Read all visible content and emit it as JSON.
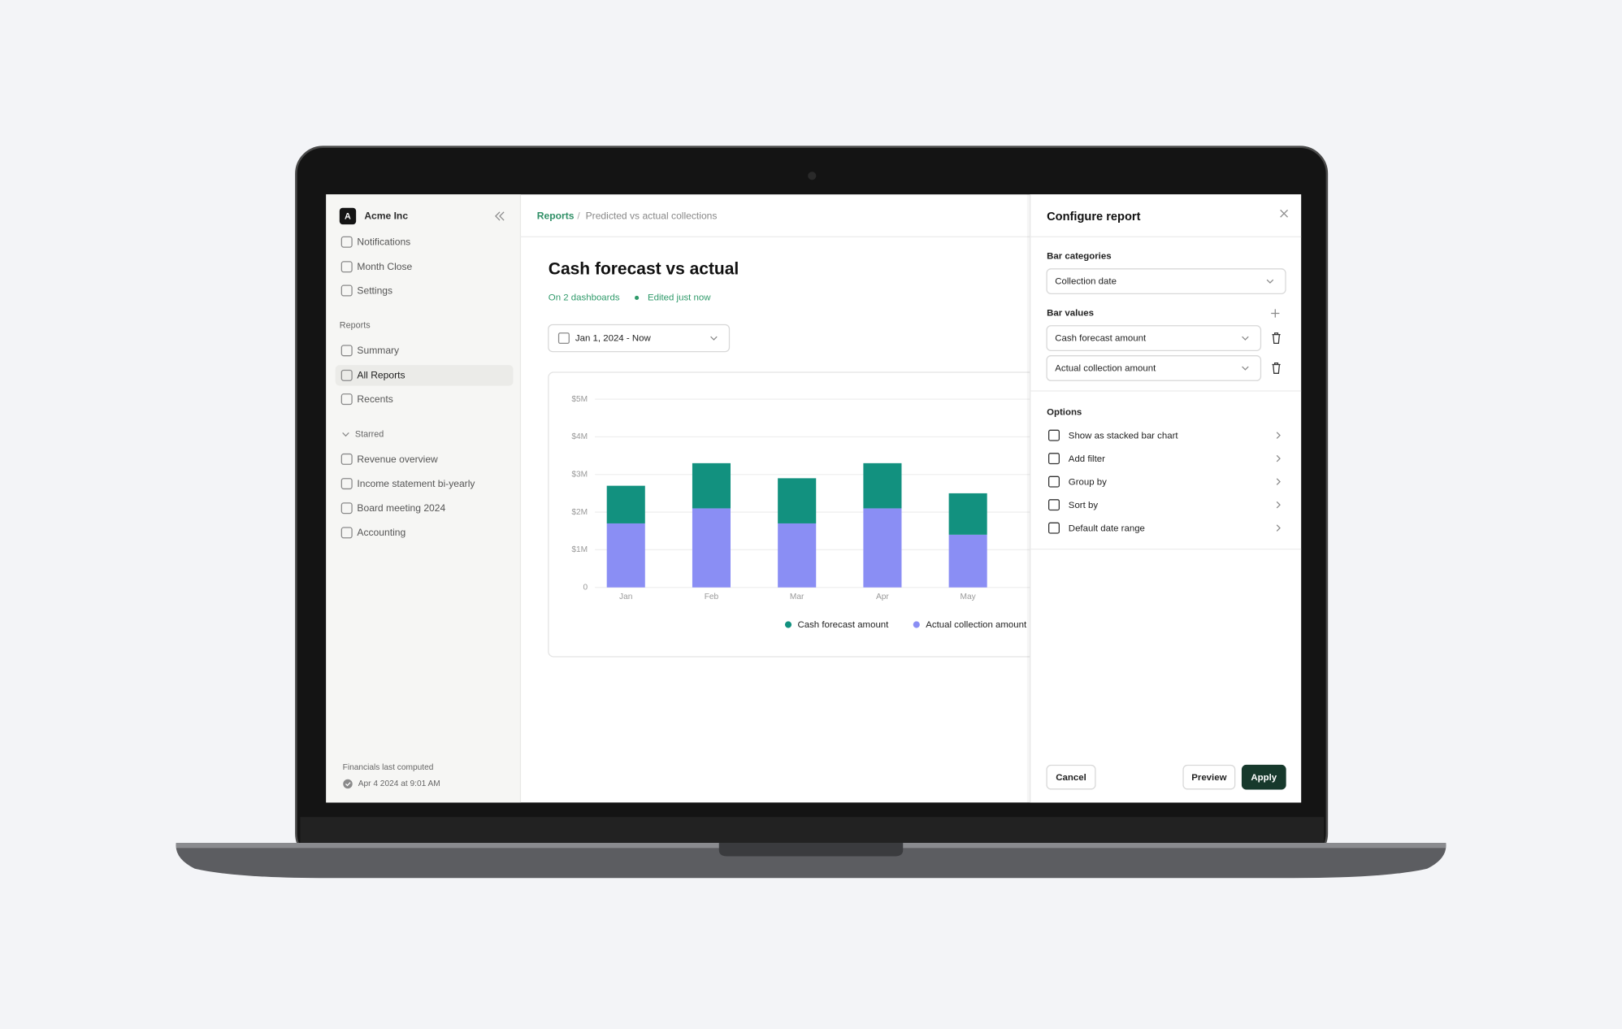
{
  "sidebar": {
    "logo": "A",
    "org": "Acme Inc",
    "nav": [
      "Notifications",
      "Month Close",
      "Settings"
    ],
    "reports_heading": "Reports",
    "reports": [
      "Summary",
      "All Reports",
      "Recents"
    ],
    "starred_heading": "Starred",
    "starred": [
      "Revenue overview",
      "Income statement bi-yearly",
      "Board meeting 2024",
      "Accounting"
    ],
    "footer_label": "Financials last computed",
    "footer_time": "Apr 4 2024 at 9:01 AM"
  },
  "breadcrumb": {
    "root": "Reports",
    "separator": "/",
    "current": "Predicted vs actual collections"
  },
  "report": {
    "title": "Cash forecast vs actual",
    "dashboards": "On 2 dashboards",
    "edited": "Edited just now",
    "date_range": "Jan 1, 2024 - Now"
  },
  "chart_data": {
    "type": "bar",
    "stacked": true,
    "categories": [
      "Jan",
      "Feb",
      "Mar",
      "Apr",
      "May"
    ],
    "series": [
      {
        "name": "Cash forecast amount",
        "color": "#12917f",
        "values": [
          1.0,
          1.2,
          1.2,
          1.2,
          1.1
        ]
      },
      {
        "name": "Actual collection amount",
        "color": "#8a8ef4",
        "values": [
          1.7,
          2.1,
          1.7,
          2.1,
          1.4
        ]
      }
    ],
    "ylim": [
      0,
      5
    ],
    "yticks": [
      0,
      {
        "value": 1,
        "label": "$1M"
      },
      {
        "value": 2,
        "label": "$2M"
      },
      {
        "value": 3,
        "label": "$3M"
      },
      {
        "value": 4,
        "label": "$4M"
      },
      {
        "value": 5,
        "label": "$5M"
      }
    ],
    "grid": true,
    "legend": "bottom"
  },
  "panel": {
    "title": "Configure report",
    "bar_categories_label": "Bar categories",
    "bar_categories_value": "Collection date",
    "bar_values_label": "Bar values",
    "bar_values": [
      "Cash forecast amount",
      "Actual collection amount"
    ],
    "options_label": "Options",
    "options": [
      "Show as stacked bar chart",
      "Add filter",
      "Group by",
      "Sort by",
      "Default date range"
    ],
    "cancel": "Cancel",
    "preview": "Preview",
    "apply": "Apply"
  }
}
